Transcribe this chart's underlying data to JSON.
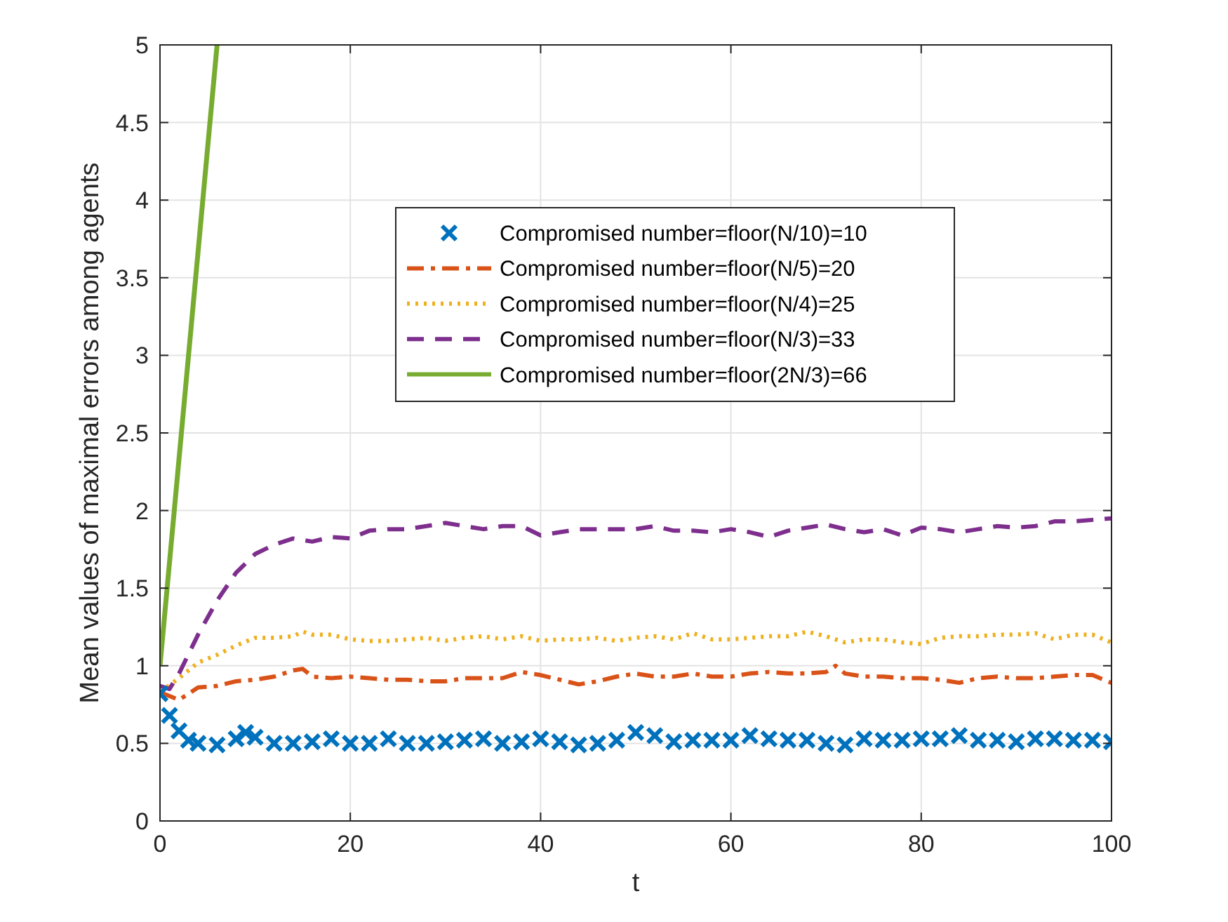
{
  "chart_data": {
    "type": "line",
    "xlabel": "t",
    "ylabel": "Mean values of maximal errors among agents",
    "xlim": [
      0,
      100
    ],
    "ylim": [
      0,
      5
    ],
    "xticks": [
      0,
      20,
      40,
      60,
      80,
      100
    ],
    "yticks": [
      0,
      0.5,
      1,
      1.5,
      2,
      2.5,
      3,
      3.5,
      4,
      4.5,
      5
    ],
    "grid": true,
    "legend": "top",
    "series": [
      {
        "name": "Compromised number=floor(N/10)=10",
        "type": "scatter",
        "marker": "cross",
        "color": "#0072bd",
        "x": [
          0,
          1,
          2,
          3,
          4,
          6,
          8,
          9,
          10,
          12,
          14,
          16,
          18,
          20,
          22,
          24,
          26,
          28,
          30,
          32,
          34,
          36,
          38,
          40,
          42,
          44,
          46,
          48,
          50,
          52,
          54,
          56,
          58,
          60,
          62,
          64,
          66,
          68,
          70,
          72,
          74,
          76,
          78,
          80,
          82,
          84,
          86,
          88,
          90,
          92,
          94,
          96,
          98,
          100
        ],
        "values": [
          0.82,
          0.68,
          0.58,
          0.52,
          0.5,
          0.49,
          0.53,
          0.57,
          0.54,
          0.5,
          0.5,
          0.51,
          0.53,
          0.5,
          0.5,
          0.53,
          0.5,
          0.5,
          0.51,
          0.52,
          0.53,
          0.5,
          0.51,
          0.53,
          0.51,
          0.49,
          0.5,
          0.52,
          0.57,
          0.55,
          0.51,
          0.52,
          0.52,
          0.52,
          0.55,
          0.53,
          0.52,
          0.52,
          0.5,
          0.49,
          0.53,
          0.52,
          0.52,
          0.53,
          0.53,
          0.55,
          0.52,
          0.52,
          0.51,
          0.53,
          0.53,
          0.52,
          0.52,
          0.51
        ]
      },
      {
        "name": "Compromised number=floor(N/5)=20",
        "line_style": "dashdot",
        "color": "#d95319",
        "x": [
          0,
          2,
          4,
          6,
          8,
          10,
          12,
          14,
          15,
          16,
          18,
          20,
          22,
          24,
          26,
          28,
          30,
          32,
          34,
          36,
          38,
          40,
          42,
          44,
          46,
          48,
          50,
          52,
          54,
          56,
          58,
          60,
          62,
          64,
          66,
          68,
          70,
          71,
          72,
          74,
          76,
          78,
          80,
          82,
          84,
          86,
          88,
          90,
          92,
          94,
          96,
          98,
          100
        ],
        "values": [
          0.83,
          0.78,
          0.86,
          0.87,
          0.9,
          0.91,
          0.93,
          0.97,
          0.98,
          0.93,
          0.92,
          0.93,
          0.92,
          0.91,
          0.91,
          0.9,
          0.9,
          0.92,
          0.92,
          0.92,
          0.96,
          0.94,
          0.91,
          0.88,
          0.9,
          0.93,
          0.95,
          0.93,
          0.93,
          0.95,
          0.93,
          0.93,
          0.95,
          0.96,
          0.95,
          0.95,
          0.96,
          1.0,
          0.95,
          0.93,
          0.93,
          0.92,
          0.92,
          0.91,
          0.89,
          0.92,
          0.93,
          0.92,
          0.92,
          0.93,
          0.94,
          0.94,
          0.89
        ]
      },
      {
        "name": "Compromised number=floor(N/4)=25",
        "line_style": "dotted",
        "color": "#edb120",
        "x": [
          0,
          2,
          4,
          6,
          8,
          10,
          12,
          14,
          15,
          16,
          18,
          20,
          22,
          24,
          26,
          28,
          30,
          32,
          34,
          36,
          38,
          40,
          42,
          44,
          46,
          48,
          50,
          52,
          54,
          56,
          58,
          60,
          62,
          64,
          66,
          68,
          70,
          72,
          74,
          76,
          78,
          80,
          82,
          84,
          86,
          88,
          90,
          92,
          94,
          96,
          98,
          100
        ],
        "values": [
          0.83,
          0.92,
          1.02,
          1.07,
          1.13,
          1.18,
          1.18,
          1.19,
          1.22,
          1.2,
          1.2,
          1.17,
          1.16,
          1.16,
          1.17,
          1.18,
          1.16,
          1.18,
          1.19,
          1.17,
          1.19,
          1.16,
          1.17,
          1.17,
          1.18,
          1.16,
          1.18,
          1.19,
          1.17,
          1.21,
          1.17,
          1.17,
          1.18,
          1.19,
          1.19,
          1.22,
          1.19,
          1.15,
          1.17,
          1.17,
          1.15,
          1.14,
          1.18,
          1.19,
          1.19,
          1.2,
          1.2,
          1.21,
          1.17,
          1.2,
          1.2,
          1.15
        ]
      },
      {
        "name": "Compromised number=floor(N/3)=33",
        "line_style": "dashed",
        "color": "#7e2f8e",
        "x": [
          0,
          1,
          2,
          4,
          6,
          8,
          10,
          12,
          14,
          16,
          18,
          20,
          22,
          24,
          26,
          28,
          30,
          32,
          34,
          36,
          38,
          40,
          42,
          44,
          46,
          48,
          50,
          52,
          54,
          56,
          58,
          60,
          62,
          64,
          66,
          68,
          70,
          72,
          74,
          76,
          78,
          80,
          82,
          84,
          86,
          88,
          90,
          92,
          94,
          96,
          98,
          100
        ],
        "values": [
          0.87,
          0.85,
          0.95,
          1.2,
          1.42,
          1.6,
          1.72,
          1.78,
          1.82,
          1.8,
          1.83,
          1.82,
          1.87,
          1.88,
          1.88,
          1.9,
          1.92,
          1.9,
          1.88,
          1.9,
          1.9,
          1.84,
          1.86,
          1.88,
          1.88,
          1.88,
          1.88,
          1.9,
          1.87,
          1.87,
          1.86,
          1.88,
          1.86,
          1.83,
          1.87,
          1.89,
          1.91,
          1.88,
          1.86,
          1.88,
          1.84,
          1.89,
          1.88,
          1.86,
          1.88,
          1.9,
          1.89,
          1.9,
          1.93,
          1.93,
          1.94,
          1.95
        ]
      },
      {
        "name": "Compromised number=floor(2N/3)=66",
        "line_style": "solid",
        "color": "#77ac30",
        "x": [
          0,
          6
        ],
        "values": [
          1,
          5
        ]
      }
    ]
  }
}
